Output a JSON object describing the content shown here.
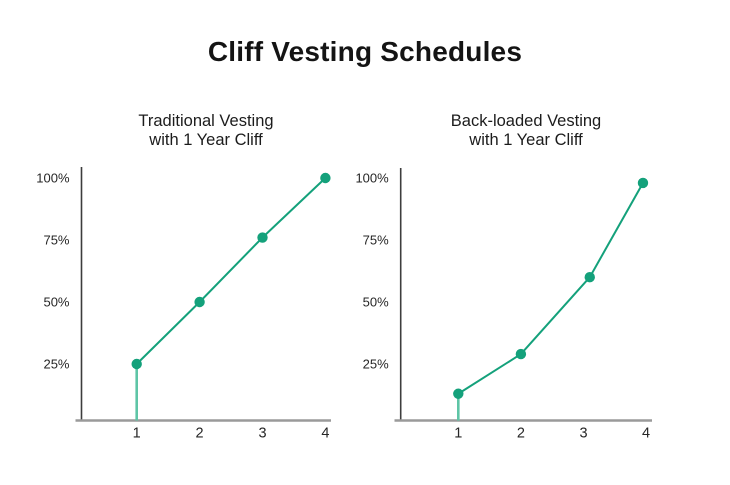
{
  "page": {
    "title": "Cliff Vesting Schedules",
    "background": "#ffffff"
  },
  "colors": {
    "line": "#14a17b",
    "point": "#14a17b",
    "cliff_line": "#5ec5a6",
    "y_axis": "#3d3d3d",
    "x_axis": "#9a9a9a",
    "text": "#1c1c1c"
  },
  "chart_data": [
    {
      "type": "line",
      "title_line1": "Traditional Vesting",
      "title_line2": "with 1 Year Cliff",
      "x": [
        1,
        2,
        3,
        4
      ],
      "values": [
        25,
        50,
        76,
        100
      ],
      "x_tick_labels": [
        "1",
        "2",
        "3",
        "4"
      ],
      "y_tick_labels": [
        "25%",
        "50%",
        "75%",
        "100%"
      ],
      "y_tick_values": [
        25,
        50,
        75,
        100
      ],
      "cliff": {
        "x": 1,
        "from_value": 0,
        "to_value": 25
      },
      "xlabel": "",
      "ylabel": "",
      "ylim": [
        0,
        105
      ],
      "grid": false,
      "legend": "none"
    },
    {
      "type": "line",
      "title_line1": "Back-loaded Vesting",
      "title_line2": "with 1 Year Cliff",
      "x": [
        1,
        2,
        3.1,
        3.95
      ],
      "values": [
        13,
        29,
        60,
        98
      ],
      "x_tick_labels": [
        "1",
        "2",
        "3",
        "4"
      ],
      "y_tick_labels": [
        "25%",
        "50%",
        "75%",
        "100%"
      ],
      "y_tick_values": [
        25,
        50,
        75,
        100
      ],
      "cliff": {
        "x": 1,
        "from_value": 0,
        "to_value": 13
      },
      "xlabel": "",
      "ylabel": "",
      "ylim": [
        0,
        105
      ],
      "grid": false,
      "legend": "none"
    }
  ]
}
